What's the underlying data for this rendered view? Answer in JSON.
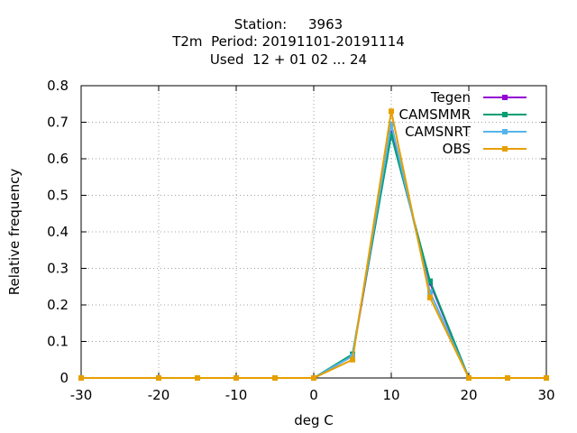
{
  "title": {
    "line1": "Station:     3963",
    "line2": "T2m  Period: 20191101-20191114",
    "line3": "Used  12 + 01 02 ... 24"
  },
  "chart_data": {
    "type": "line",
    "xlabel": "deg C",
    "ylabel": "Relative frequency",
    "xlim": [
      -30,
      30
    ],
    "ylim": [
      0,
      0.8
    ],
    "xticks": [
      -30,
      -20,
      -10,
      0,
      10,
      20,
      30
    ],
    "yticks": [
      0,
      0.1,
      0.2,
      0.3,
      0.4,
      0.5,
      0.6,
      0.7,
      0.8
    ],
    "grid": true,
    "legend_position": "top-right",
    "x": [
      -30,
      -20,
      -15,
      -10,
      -5,
      0,
      5,
      10,
      15,
      20,
      25,
      30
    ],
    "series": [
      {
        "name": "Tegen",
        "color": "#9400d3",
        "values": [
          0,
          0,
          0,
          0,
          0,
          0,
          0.06,
          0.67,
          0.26,
          0,
          0,
          0
        ]
      },
      {
        "name": "CAMSMMR",
        "color": "#009e73",
        "values": [
          0,
          0,
          0,
          0,
          0,
          0,
          0.065,
          0.665,
          0.265,
          0,
          0,
          0
        ]
      },
      {
        "name": "CAMSNRT",
        "color": "#56b4e9",
        "values": [
          0,
          0,
          0,
          0,
          0,
          0,
          0.06,
          0.695,
          0.235,
          0,
          0,
          0
        ]
      },
      {
        "name": "OBS",
        "color": "#e69f00",
        "values": [
          0,
          0,
          0,
          0,
          0,
          0,
          0.05,
          0.73,
          0.22,
          0,
          0,
          0
        ]
      }
    ]
  }
}
